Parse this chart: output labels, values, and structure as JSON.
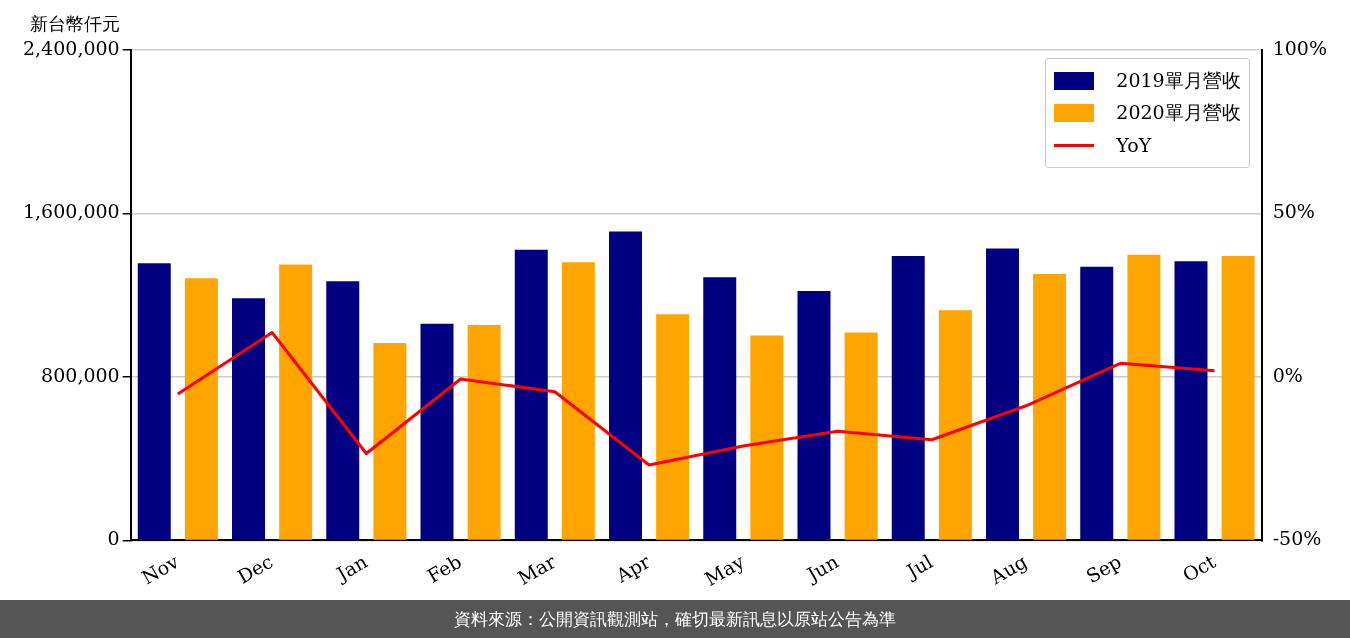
{
  "chart_data": {
    "type": "bar",
    "ylabel": "新台幣仟元",
    "categories": [
      "Nov",
      "Dec",
      "Jan",
      "Feb",
      "Mar",
      "Apr",
      "May",
      "Jun",
      "Jul",
      "Aug",
      "Sep",
      "Oct"
    ],
    "series": [
      {
        "name": "2019單月營收",
        "color": "#000080",
        "values": [
          1356000,
          1185000,
          1268000,
          1060000,
          1423000,
          1512000,
          1288000,
          1221000,
          1392000,
          1429000,
          1340000,
          1366000
        ]
      },
      {
        "name": "2020單月營收",
        "color": "#ffa500",
        "values": [
          1283000,
          1351000,
          966000,
          1055000,
          1361000,
          1107000,
          1003000,
          1018000,
          1127000,
          1304000,
          1398000,
          1392000
        ]
      },
      {
        "name": "YoY",
        "type": "line",
        "axis": "y2",
        "color": "#ff0000",
        "values": [
          -5.2,
          13.6,
          -23.4,
          -0.6,
          -4.5,
          -26.9,
          -21.1,
          -16.6,
          -19.2,
          -8.8,
          4.2,
          1.9
        ]
      }
    ],
    "ylim": [
      0,
      2400000
    ],
    "yticks": [
      {
        "value": 0,
        "label": "0"
      },
      {
        "value": 800000,
        "label": "800,000"
      },
      {
        "value": 1600000,
        "label": "1,600,000"
      },
      {
        "value": 2400000,
        "label": "2,400,000"
      }
    ],
    "y2lim": [
      -50,
      100
    ],
    "y2ticks": [
      {
        "value": -50,
        "label": "-50%"
      },
      {
        "value": 0,
        "label": "0%"
      },
      {
        "value": 50,
        "label": "50%"
      },
      {
        "value": 100,
        "label": "100%"
      }
    ],
    "grid": "y",
    "legend": "top right",
    "marker": "none",
    "line_style": "solid",
    "annotations": [
      "資料來源：公開資訊觀測站，確切最新訊息以原站公告為準"
    ]
  }
}
